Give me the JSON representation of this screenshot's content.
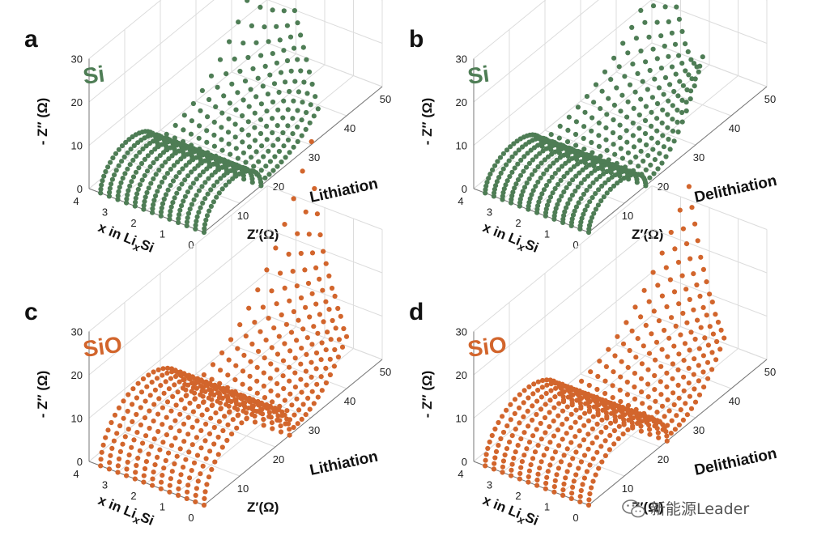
{
  "chart_data": [
    {
      "id": "a",
      "panel_label": "a",
      "type": "scatter",
      "material": "Si",
      "process": "Lithiation",
      "color": "#4e7d55",
      "xlabel": "Z′(Ω)",
      "ylabel": "- Z″ (Ω)",
      "zlabel_parts": [
        "x in Li",
        "x",
        "Si"
      ],
      "x_ticks": [
        "10",
        "20",
        "30",
        "40",
        "50"
      ],
      "z_ticks": [
        "0",
        "10",
        "20",
        "30"
      ],
      "y_ticks": [
        "0",
        "1",
        "2",
        "3",
        "4"
      ],
      "x_range": [
        0,
        50
      ],
      "z_range": [
        0,
        30
      ],
      "y_range": [
        0,
        4
      ],
      "series_positions": [
        0.0,
        0.3,
        0.6,
        0.9,
        1.2,
        1.5,
        1.8,
        2.1,
        2.4,
        2.7,
        3.0,
        3.3,
        3.6
      ],
      "semicircle_diameter": 16,
      "semicircle_peak": 7,
      "tail_peaks": [
        6,
        7,
        8,
        9,
        10,
        11,
        12,
        13,
        14,
        16,
        19,
        24,
        33
      ]
    },
    {
      "id": "b",
      "panel_label": "b",
      "type": "scatter",
      "material": "Si",
      "process": "Delithiation",
      "color": "#4e7d55",
      "xlabel": "Z′(Ω)",
      "ylabel": "- Z″ (Ω)",
      "zlabel_parts": [
        "x in Li",
        "x",
        "Si"
      ],
      "x_ticks": [
        "10",
        "20",
        "30",
        "40",
        "50"
      ],
      "z_ticks": [
        "0",
        "10",
        "20",
        "30"
      ],
      "y_ticks": [
        "0",
        "1",
        "2",
        "3",
        "4"
      ],
      "x_range": [
        0,
        50
      ],
      "z_range": [
        0,
        30
      ],
      "y_range": [
        0,
        4
      ],
      "series_positions": [
        0.0,
        0.3,
        0.6,
        0.9,
        1.2,
        1.5,
        1.8,
        2.1,
        2.4,
        2.7,
        3.0,
        3.3,
        3.6
      ],
      "semicircle_diameter": 16,
      "semicircle_peak": 6,
      "tail_peaks": [
        18,
        14,
        12,
        11,
        10,
        10,
        10,
        11,
        12,
        13,
        15,
        18,
        20
      ]
    },
    {
      "id": "c",
      "panel_label": "c",
      "type": "scatter",
      "material": "SiO",
      "process": "Lithiation",
      "color": "#d2652c",
      "xlabel": "Z′(Ω)",
      "ylabel": "- Z″ (Ω)",
      "zlabel_parts": [
        "x in Li",
        "x",
        "Si"
      ],
      "x_ticks": [
        "10",
        "20",
        "30",
        "40",
        "50"
      ],
      "z_ticks": [
        "0",
        "10",
        "20",
        "30"
      ],
      "y_ticks": [
        "0",
        "1",
        "2",
        "3",
        "4"
      ],
      "x_range": [
        0,
        50
      ],
      "z_range": [
        0,
        30
      ],
      "y_range": [
        0,
        4
      ],
      "series_positions": [
        0.0,
        0.3,
        0.6,
        0.9,
        1.2,
        1.5,
        1.8,
        2.1,
        2.4,
        2.7,
        3.0,
        3.3,
        3.6
      ],
      "semicircle_diameter": 24,
      "semicircle_peak": 12,
      "tail_peaks": [
        11,
        11,
        12,
        12,
        13,
        13,
        14,
        15,
        16,
        18,
        21,
        25,
        34
      ]
    },
    {
      "id": "d",
      "panel_label": "d",
      "type": "scatter",
      "material": "SiO",
      "process": "Delithiation",
      "color": "#d2652c",
      "xlabel": "Z′(Ω)",
      "ylabel": "- Z″ (Ω)",
      "zlabel_parts": [
        "x in Li",
        "x",
        "Si"
      ],
      "x_ticks": [
        "10",
        "20",
        "30",
        "40",
        "50"
      ],
      "z_ticks": [
        "0",
        "10",
        "20",
        "30"
      ],
      "y_ticks": [
        "0",
        "1",
        "2",
        "3",
        "4"
      ],
      "x_range": [
        0,
        50
      ],
      "z_range": [
        0,
        30
      ],
      "y_range": [
        0,
        4
      ],
      "series_positions": [
        0.0,
        0.3,
        0.6,
        0.9,
        1.2,
        1.5,
        1.8,
        2.1,
        2.4,
        2.7,
        3.0,
        3.3,
        3.6
      ],
      "semicircle_diameter": 22,
      "semicircle_peak": 10,
      "tail_peaks": [
        12,
        12,
        12,
        12,
        13,
        13,
        14,
        15,
        16,
        18,
        20,
        22,
        25
      ]
    }
  ],
  "watermark": {
    "icon": "wechat-icon",
    "text": "新能源Leader"
  }
}
